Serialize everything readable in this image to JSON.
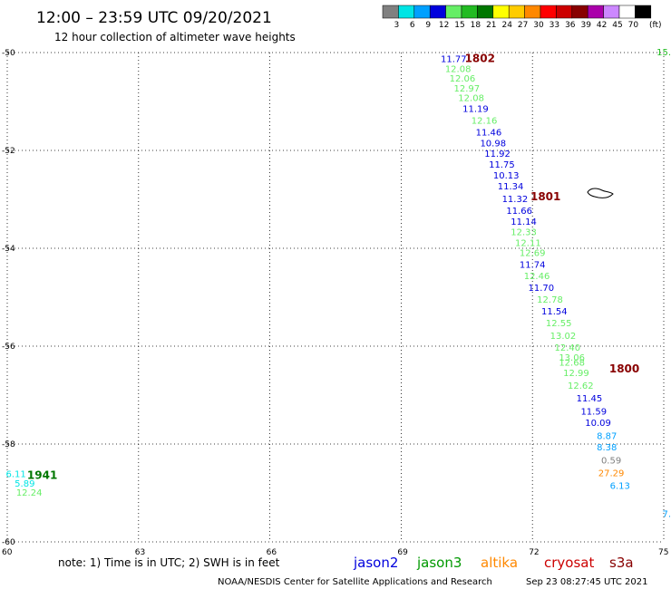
{
  "header": {
    "title": "12:00 – 23:59 UTC 09/20/2021",
    "subtitle": "12 hour collection of altimeter wave heights"
  },
  "legend": {
    "unit": "(ft)",
    "bins": [
      {
        "color": "#808080",
        "label": "3"
      },
      {
        "color": "#00e5e5",
        "label": "6"
      },
      {
        "color": "#00a0ff",
        "label": "9"
      },
      {
        "color": "#0000dd",
        "label": "12"
      },
      {
        "color": "#66ee66",
        "label": "15"
      },
      {
        "color": "#22bb22",
        "label": "18"
      },
      {
        "color": "#007700",
        "label": "21"
      },
      {
        "color": "#ffff00",
        "label": "24"
      },
      {
        "color": "#ffcc00",
        "label": "27"
      },
      {
        "color": "#ff8800",
        "label": "30"
      },
      {
        "color": "#ff0000",
        "label": "33"
      },
      {
        "color": "#cc0000",
        "label": "36"
      },
      {
        "color": "#880000",
        "label": "39"
      },
      {
        "color": "#aa00aa",
        "label": "42"
      },
      {
        "color": "#cc88ff",
        "label": "45"
      },
      {
        "color": "#ffffff",
        "label": "70"
      },
      {
        "color": "#000000",
        "label": ""
      }
    ]
  },
  "map": {
    "lon_range": [
      60,
      75
    ],
    "lat_range": [
      -60,
      -50
    ],
    "lon_ticks": [
      "60",
      "63",
      "66",
      "69",
      "72",
      "75"
    ],
    "lat_ticks": [
      "-50",
      "-52",
      "-54",
      "-56",
      "-58",
      "-60"
    ],
    "lat_tick_values": [
      -50,
      -52,
      -54,
      -56,
      -58,
      -60
    ],
    "lon_tick_values": [
      60,
      63,
      66,
      69,
      72,
      75
    ],
    "grid": "dotted"
  },
  "observations": [
    {
      "lon": 70.2,
      "lat": -50.12,
      "value": "11.77",
      "color": "#0000dd"
    },
    {
      "lon": 70.3,
      "lat": -50.32,
      "value": "12.08",
      "color": "#66ee66"
    },
    {
      "lon": 70.4,
      "lat": -50.52,
      "value": "12.06",
      "color": "#66ee66"
    },
    {
      "lon": 70.5,
      "lat": -50.72,
      "value": "12.97",
      "color": "#66ee66"
    },
    {
      "lon": 70.6,
      "lat": -50.92,
      "value": "12.08",
      "color": "#66ee66"
    },
    {
      "lon": 70.7,
      "lat": -51.14,
      "value": "11.19",
      "color": "#0000dd"
    },
    {
      "lon": 70.9,
      "lat": -51.38,
      "value": "12.16",
      "color": "#66ee66"
    },
    {
      "lon": 71.0,
      "lat": -51.62,
      "value": "11.46",
      "color": "#0000dd"
    },
    {
      "lon": 71.1,
      "lat": -51.84,
      "value": "10.98",
      "color": "#0000dd"
    },
    {
      "lon": 71.2,
      "lat": -52.06,
      "value": "11.92",
      "color": "#0000dd"
    },
    {
      "lon": 71.3,
      "lat": -52.28,
      "value": "11.75",
      "color": "#0000dd"
    },
    {
      "lon": 71.4,
      "lat": -52.5,
      "value": "10.13",
      "color": "#0000dd"
    },
    {
      "lon": 71.5,
      "lat": -52.72,
      "value": "11.34",
      "color": "#0000dd"
    },
    {
      "lon": 71.6,
      "lat": -52.98,
      "value": "11.32",
      "color": "#0000dd"
    },
    {
      "lon": 71.7,
      "lat": -53.22,
      "value": "11.66",
      "color": "#0000dd"
    },
    {
      "lon": 71.8,
      "lat": -53.44,
      "value": "11.14",
      "color": "#0000dd"
    },
    {
      "lon": 71.8,
      "lat": -53.66,
      "value": "12.33",
      "color": "#66ee66"
    },
    {
      "lon": 71.9,
      "lat": -53.88,
      "value": "12.11",
      "color": "#66ee66"
    },
    {
      "lon": 72.0,
      "lat": -54.08,
      "value": "12.69",
      "color": "#66ee66"
    },
    {
      "lon": 72.0,
      "lat": -54.32,
      "value": "11.74",
      "color": "#0000dd"
    },
    {
      "lon": 72.1,
      "lat": -54.56,
      "value": "12.46",
      "color": "#66ee66"
    },
    {
      "lon": 72.2,
      "lat": -54.8,
      "value": "11.70",
      "color": "#0000dd"
    },
    {
      "lon": 72.4,
      "lat": -55.04,
      "value": "12.78",
      "color": "#66ee66"
    },
    {
      "lon": 72.5,
      "lat": -55.28,
      "value": "11.54",
      "color": "#0000dd"
    },
    {
      "lon": 72.6,
      "lat": -55.52,
      "value": "12.55",
      "color": "#66ee66"
    },
    {
      "lon": 72.7,
      "lat": -55.78,
      "value": "13.02",
      "color": "#66ee66"
    },
    {
      "lon": 72.8,
      "lat": -56.02,
      "value": "12.40",
      "color": "#66ee66"
    },
    {
      "lon": 72.9,
      "lat": -56.22,
      "value": "13.06",
      "color": "#66ee66"
    },
    {
      "lon": 72.9,
      "lat": -56.32,
      "value": "12.68",
      "color": "#66ee66"
    },
    {
      "lon": 73.0,
      "lat": -56.54,
      "value": "12.99",
      "color": "#66ee66"
    },
    {
      "lon": 73.1,
      "lat": -56.8,
      "value": "12.62",
      "color": "#66ee66"
    },
    {
      "lon": 73.3,
      "lat": -57.06,
      "value": "11.45",
      "color": "#0000dd"
    },
    {
      "lon": 73.4,
      "lat": -57.32,
      "value": "11.59",
      "color": "#0000dd"
    },
    {
      "lon": 73.5,
      "lat": -57.56,
      "value": "10.09",
      "color": "#0000dd"
    },
    {
      "lon": 73.7,
      "lat": -57.82,
      "value": "8.87",
      "color": "#00a0ff"
    },
    {
      "lon": 73.7,
      "lat": -58.06,
      "value": "8.38",
      "color": "#00a0ff"
    },
    {
      "lon": 73.8,
      "lat": -58.32,
      "value": "0.59",
      "color": "#808080"
    },
    {
      "lon": 73.8,
      "lat": -58.58,
      "value": "27.29",
      "color": "#ff8800"
    },
    {
      "lon": 74.0,
      "lat": -58.84,
      "value": "6.13",
      "color": "#00a0ff"
    },
    {
      "lon": 60.2,
      "lat": -58.6,
      "value": "6.11",
      "color": "#00e5e5"
    },
    {
      "lon": 60.4,
      "lat": -58.8,
      "value": "5.89",
      "color": "#00e5e5"
    },
    {
      "lon": 60.5,
      "lat": -58.98,
      "value": "12.24",
      "color": "#66ee66"
    }
  ],
  "edge_observations": [
    {
      "lon": 75.0,
      "lat": -49.98,
      "value": "15.",
      "color": "#22bb22"
    },
    {
      "lon": 75.0,
      "lat": -59.42,
      "value": "7.",
      "color": "#00a0ff"
    }
  ],
  "time_markers": [
    {
      "lon": 70.8,
      "lat": -50.12,
      "label": "1802",
      "color": "#880000"
    },
    {
      "lon": 72.3,
      "lat": -52.94,
      "label": "1801",
      "color": "#880000"
    },
    {
      "lon": 74.1,
      "lat": -56.46,
      "label": "1800",
      "color": "#880000"
    },
    {
      "lon": 60.8,
      "lat": -58.64,
      "label": "1941",
      "color": "#007700"
    }
  ],
  "footer": {
    "note": "note: 1) Time is in UTC; 2) SWH is in feet",
    "satellites": [
      {
        "name": "jason2",
        "color": "#0000dd"
      },
      {
        "name": "jason3",
        "color": "#009900"
      },
      {
        "name": "altika",
        "color": "#ff8800"
      },
      {
        "name": "cryosat",
        "color": "#cc0000"
      },
      {
        "name": "s3a",
        "color": "#880000"
      }
    ],
    "credit": "NOAA/NESDIS Center for Satellite Applications and Research",
    "timestamp": "Sep 23 08:27:45 UTC 2021"
  }
}
